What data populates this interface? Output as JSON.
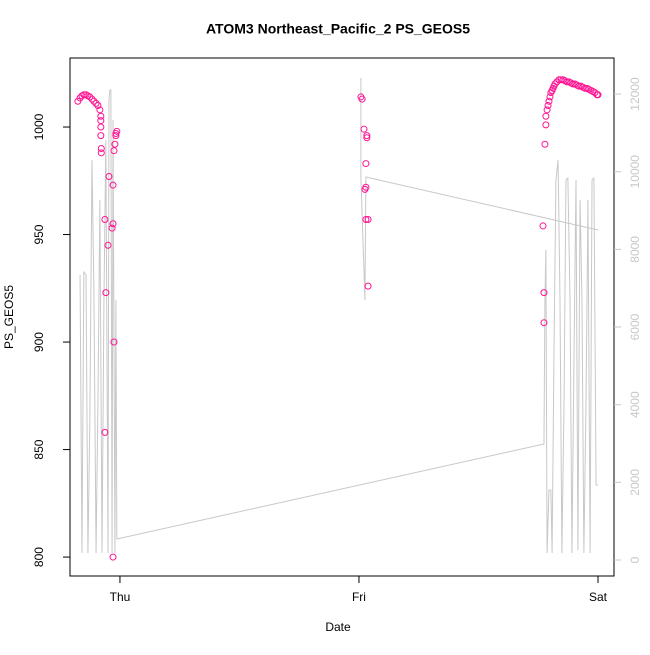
{
  "chart_data": {
    "type": "scatter",
    "title": "ATOM3 Northeast_Pacific_2 PS_GEOS5",
    "xlabel": "Date",
    "ylabel": "PS_GEOS5",
    "xlim": [
      -0.209,
      2.067
    ],
    "xticks": [
      {
        "value": 0,
        "label": "Thu"
      },
      {
        "value": 1,
        "label": "Fri"
      },
      {
        "value": 2,
        "label": "Sat"
      }
    ],
    "ylim": [
      791.2,
      1032.1
    ],
    "yticks": [
      800,
      850,
      900,
      950,
      1000
    ],
    "y2lim": [
      -412,
      12928
    ],
    "y2ticks": [
      0,
      2000,
      4000,
      6000,
      8000,
      10000,
      12000
    ],
    "series": [
      {
        "type": "scatter",
        "color": "#ff1493",
        "x": [
          -0.176,
          -0.167,
          -0.159,
          -0.151,
          -0.142,
          -0.134,
          -0.126,
          -0.117,
          -0.109,
          -0.1,
          -0.092,
          -0.084,
          -0.08,
          -0.08,
          -0.08,
          -0.08,
          -0.078,
          -0.078,
          -0.063,
          -0.059,
          -0.063,
          -0.05,
          -0.046,
          -0.033,
          -0.029,
          -0.029,
          -0.025,
          -0.029,
          -0.025,
          -0.021,
          -0.017,
          -0.017,
          -0.013,
          1.008,
          1.013,
          1.021,
          1.025,
          1.029,
          1.029,
          1.029,
          1.033,
          1.033,
          1.038,
          1.038,
          1.77,
          1.774,
          1.774,
          1.778,
          1.782,
          1.782,
          1.787,
          1.791,
          1.795,
          1.799,
          1.803,
          1.808,
          1.812,
          1.816,
          1.82,
          1.828,
          1.837,
          1.845,
          1.854,
          1.862,
          1.87,
          1.879,
          1.887,
          1.895,
          1.904,
          1.912,
          1.92,
          1.929,
          1.937,
          1.946,
          1.954,
          1.962,
          1.971,
          1.979,
          1.987,
          1.996,
          2.0
        ],
        "values": [
          1012,
          1013.5,
          1014.5,
          1015,
          1015,
          1014.5,
          1014,
          1013,
          1012,
          1011,
          1010,
          1008,
          1005,
          1003,
          1000,
          996,
          990,
          988,
          957,
          923,
          858,
          945,
          977,
          953,
          955,
          973,
          900,
          800,
          989,
          992,
          996,
          997,
          998,
          1014,
          1013,
          999,
          971,
          972,
          983,
          957,
          995,
          996,
          926,
          957,
          954,
          923,
          909,
          992,
          1001,
          1005,
          1008,
          1010,
          1012,
          1014,
          1016,
          1017,
          1018,
          1019,
          1020,
          1021,
          1022,
          1022,
          1022,
          1021.5,
          1021,
          1021,
          1020.5,
          1020,
          1020,
          1019.5,
          1019,
          1019,
          1018.5,
          1018,
          1018,
          1017.5,
          1017,
          1016.5,
          1016,
          1015,
          1015
        ]
      },
      {
        "type": "line",
        "axis": "y2",
        "color": "#c8c8c8",
        "x": [
          -0.167,
          -0.159,
          -0.151,
          -0.142,
          -0.134,
          -0.126,
          -0.117,
          -0.109,
          -0.1,
          -0.092,
          -0.084,
          -0.075,
          -0.067,
          -0.059,
          -0.05,
          -0.046,
          -0.042,
          -0.038,
          -0.033,
          -0.029,
          -0.021,
          -0.017,
          -0.013,
          1.774,
          1.778,
          1.782,
          1.787,
          1.795,
          1.803,
          1.808,
          1.816,
          1.824,
          1.833,
          1.841,
          1.849,
          1.858,
          1.866,
          1.874,
          1.883,
          1.891,
          1.9,
          1.908,
          1.916,
          1.925,
          1.933,
          1.941,
          1.95,
          1.958,
          1.967,
          1.975,
          1.983,
          1.992,
          2.0,
          null,
          1.008,
          1.008,
          1.025,
          1.029,
          2.0
        ],
        "values": [
          7340,
          180,
          7417,
          7340,
          180,
          3605,
          10301,
          6953,
          180,
          4120,
          9271,
          180,
          6696,
          10816,
          180,
          11846,
          12104,
          12104,
          180,
          11331,
          180,
          6696,
          541,
          2987,
          6696,
          7983,
          180,
          1803,
          1803,
          180,
          5408,
          9786,
          10301,
          6696,
          180,
          4120,
          9786,
          9837,
          6696,
          180,
          5408,
          9786,
          257,
          9271,
          6696,
          180,
          4120,
          9271,
          180,
          9786,
          9837,
          1931,
          1931,
          null,
          12413,
          9863,
          6696,
          9863,
          8499
        ]
      }
    ]
  }
}
